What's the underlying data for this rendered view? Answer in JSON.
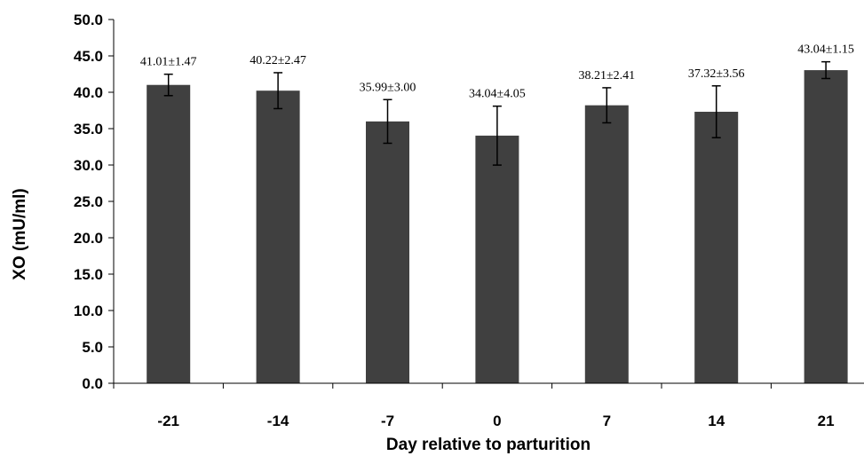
{
  "chart_data": {
    "type": "bar",
    "categories": [
      "-21",
      "-14",
      "-7",
      "0",
      "7",
      "14",
      "21"
    ],
    "values": [
      41.01,
      40.22,
      35.99,
      34.04,
      38.21,
      37.32,
      43.04
    ],
    "errors": [
      1.47,
      2.47,
      3.0,
      4.05,
      2.41,
      3.56,
      1.15
    ],
    "data_labels": [
      "41.01±1.47",
      "40.22±2.47",
      "35.99±3.00",
      "34.04±4.05",
      "38.21±2.41",
      "37.32±3.56",
      "43.04±1.15"
    ],
    "xlabel": "Day relative to parturition",
    "ylabel": "XO (mU/ml)",
    "ylim": [
      0,
      50
    ],
    "yticks": [
      "0.0",
      "5.0",
      "10.0",
      "15.0",
      "20.0",
      "25.0",
      "30.0",
      "35.0",
      "40.0",
      "45.0",
      "50.0"
    ],
    "bar_color": "#404040",
    "grid": false,
    "legend": "none"
  }
}
